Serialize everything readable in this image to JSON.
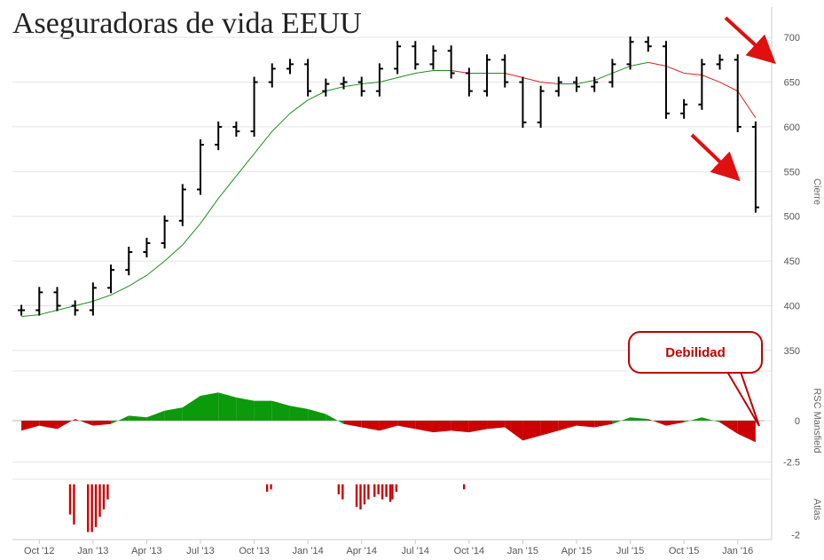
{
  "title": "Aseguradoras de vida EEUU",
  "callout": "Debilidad",
  "colors": {
    "price": "#000000",
    "ma_up": "#1a8f1a",
    "ma_down": "#e02020",
    "rsc_pos": "#0a9a0a",
    "rsc_neg": "#cc0000",
    "atlas": "#cc0000",
    "arrow": "#e01010"
  },
  "chart_data": [
    {
      "type": "ohlc",
      "panel": "price",
      "ylabel": "Cierre",
      "ylim": [
        335,
        720
      ],
      "yticks": [
        350,
        400,
        450,
        500,
        550,
        600,
        650,
        700
      ],
      "xticks": [
        "Oct '12",
        "Jan '13",
        "Apr '13",
        "Jul '13",
        "Oct '13",
        "Jan '14",
        "Apr '14",
        "Jul '14",
        "Oct '14",
        "Jan '15",
        "Apr '15",
        "Jul '15",
        "Oct '15",
        "Jan '16"
      ],
      "x": [
        "Sep '12",
        "Oct '12",
        "Nov '12",
        "Dec '12",
        "Jan '13",
        "Feb '13",
        "Mar '13",
        "Apr '13",
        "May '13",
        "Jun '13",
        "Jul '13",
        "Aug '13",
        "Sep '13",
        "Oct '13",
        "Nov '13",
        "Dec '13",
        "Jan '14",
        "Feb '14",
        "Mar '14",
        "Apr '14",
        "May '14",
        "Jun '14",
        "Jul '14",
        "Aug '14",
        "Sep '14",
        "Oct '14",
        "Nov '14",
        "Dec '14",
        "Jan '15",
        "Feb '15",
        "Mar '15",
        "Apr '15",
        "May '15",
        "Jun '15",
        "Jul '15",
        "Aug '15",
        "Sep '15",
        "Oct '15",
        "Nov '15",
        "Dec '15",
        "Jan '16",
        "Feb '16"
      ],
      "series": [
        {
          "values": [
            395,
            415,
            400,
            395,
            420,
            440,
            460,
            470,
            495,
            530,
            580,
            600,
            595,
            650,
            665,
            670,
            640,
            648,
            650,
            640,
            665,
            690,
            670,
            685,
            660,
            640,
            675,
            650,
            605,
            640,
            650,
            645,
            650,
            670,
            695,
            690,
            615,
            625,
            670,
            675,
            600,
            510
          ]
        },
        {
          "values": [
            388,
            390,
            395,
            400,
            405,
            412,
            422,
            434,
            450,
            468,
            492,
            520,
            545,
            570,
            595,
            615,
            630,
            640,
            645,
            648,
            650,
            655,
            660,
            663,
            663,
            660,
            660,
            660,
            655,
            650,
            648,
            648,
            652,
            660,
            668,
            672,
            668,
            660,
            658,
            650,
            640,
            610
          ]
        }
      ]
    },
    {
      "type": "area",
      "panel": "rsc",
      "ylabel": "RSC Mansfield",
      "ylim": [
        -3,
        3
      ],
      "yticks": [
        -2.5,
        0
      ],
      "x": [
        "Sep '12",
        "Oct '12",
        "Nov '12",
        "Dec '12",
        "Jan '13",
        "Feb '13",
        "Mar '13",
        "Apr '13",
        "May '13",
        "Jun '13",
        "Jul '13",
        "Aug '13",
        "Sep '13",
        "Oct '13",
        "Nov '13",
        "Dec '13",
        "Jan '14",
        "Feb '14",
        "Mar '14",
        "Apr '14",
        "May '14",
        "Jun '14",
        "Jul '14",
        "Aug '14",
        "Sep '14",
        "Oct '14",
        "Nov '14",
        "Dec '14",
        "Jan '15",
        "Feb '15",
        "Mar '15",
        "Apr '15",
        "May '15",
        "Jun '15",
        "Jul '15",
        "Aug '15",
        "Sep '15",
        "Oct '15",
        "Nov '15",
        "Dec '15",
        "Jan '16",
        "Feb '16"
      ],
      "values": [
        -0.6,
        -0.3,
        -0.5,
        0.1,
        -0.3,
        -0.2,
        0.3,
        0.2,
        0.6,
        0.8,
        1.5,
        1.7,
        1.4,
        1.2,
        1.2,
        0.9,
        0.7,
        0.4,
        -0.2,
        -0.4,
        -0.6,
        -0.3,
        -0.5,
        -0.7,
        -0.6,
        -0.7,
        -0.5,
        -0.4,
        -1.2,
        -0.9,
        -0.6,
        -0.3,
        -0.4,
        -0.2,
        0.2,
        0.1,
        -0.3,
        -0.1,
        0.2,
        -0.1,
        -0.8,
        -1.3
      ]
    },
    {
      "type": "bar",
      "panel": "atlas",
      "ylabel": "Atlas",
      "ylim": [
        -2.2,
        0.2
      ],
      "yticks": [
        -2
      ],
      "x": [
        "Dec '12",
        "Dec '12",
        "Jan '13",
        "Jan '13",
        "Jan '13",
        "Jan '13",
        "Jan '13",
        "Jan '13",
        "Nov '13",
        "Nov '13",
        "Mar '14",
        "Mar '14",
        "Apr '14",
        "Apr '14",
        "Apr '14",
        "Apr '14",
        "May '14",
        "May '14",
        "May '14",
        "May '14",
        "May '14",
        "Jun '14",
        "Jun '14",
        "Oct '14"
      ],
      "values": [
        -1.2,
        -1.6,
        -1.9,
        -1.9,
        -1.7,
        -1.3,
        -1.0,
        -0.6,
        -0.3,
        -0.2,
        -0.4,
        -0.6,
        -0.9,
        -1.0,
        -0.8,
        -0.6,
        -0.5,
        -0.4,
        -0.6,
        -0.5,
        -0.7,
        -0.6,
        -0.3,
        -0.2
      ]
    }
  ]
}
